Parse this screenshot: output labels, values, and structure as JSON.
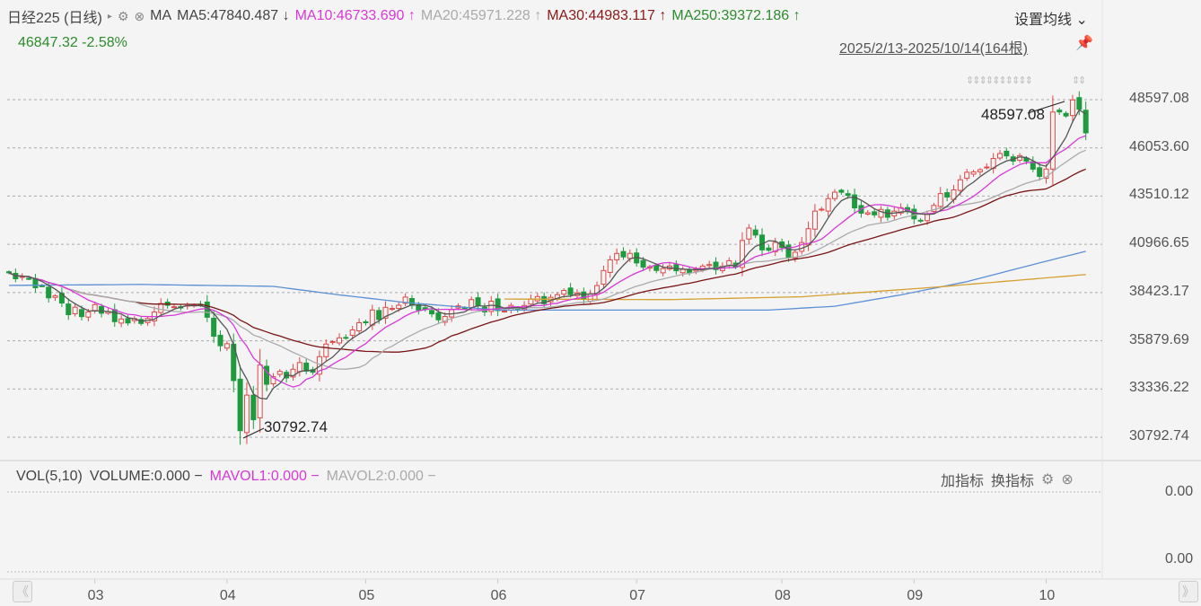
{
  "header": {
    "title": "日经225 (日线)",
    "expand_icon": "triangle-right-icon",
    "ma_label": "MA",
    "ma5": "MA5:47840.487 ↓",
    "ma10": "MA10:46733.690 ↑",
    "ma20": "MA20:45971.228 ↑",
    "ma30": "MA30:44983.117 ↑",
    "ma250": "MA250:39372.186 ↑",
    "set_ma": "设置均线 ⌄",
    "price": "46847.32 -2.58%",
    "range": "2025/2/13-2025/10/14(164根)"
  },
  "colors": {
    "up": "#e04848",
    "down": "#1f9a3f",
    "ma5": "#555555",
    "ma10": "#d838d8",
    "ma20": "#aaaaaa",
    "ma30": "#7a1414",
    "blue_line": "#5b8fd6",
    "gold_line": "#d4a030"
  },
  "chart_data": {
    "type": "candlestick",
    "y_ticks": [
      "48597.08",
      "46053.60",
      "43510.12",
      "40966.65",
      "38423.17",
      "35879.69",
      "33336.22",
      "30792.74"
    ],
    "ylim": [
      30792.74,
      48597.08
    ],
    "high_label": "48597.08",
    "low_label": "30792.74",
    "months": [
      "03",
      "04",
      "05",
      "06",
      "07",
      "08",
      "09",
      "10"
    ],
    "month_start_index": [
      13,
      33,
      54,
      74,
      95,
      117,
      137,
      157
    ],
    "closes": [
      39462,
      39149,
      39270,
      39164,
      38678,
      38777,
      38142,
      38256,
      37870,
      37256,
      37650,
      37155,
      37400,
      37785,
      37331,
      37418,
      36887,
      37028,
      36819,
      37050,
      36790,
      37053,
      37396,
      37845,
      37751,
      37677,
      37608,
      37800,
      37780,
      37799,
      37120,
      36120,
      35617,
      35725,
      33780,
      31136,
      33012,
      31714,
      34609,
      33585,
      33982,
      34267,
      33920,
      34377,
      34730,
      34280,
      34220,
      35040,
      35705,
      35839,
      36032,
      36046,
      36452,
      36831,
      36830,
      37503,
      37000,
      37644,
      37585,
      37755,
      38183,
      37753,
      37498,
      37529,
      37298,
      36985,
      37160,
      37532,
      37724,
      37623,
      38050,
      37722,
      37400,
      37965,
      37471,
      37446,
      37747,
      37554,
      37741,
      38088,
      38211,
      37834,
      38173,
      38312,
      38536,
      38311,
      38403,
      38088,
      38354,
      38790,
      39584,
      40150,
      40487,
      40300,
      40487,
      39986,
      39762,
      39785,
      39587,
      39688,
      39821,
      39569,
      39646,
      39459,
      39678,
      39819,
      39901,
      39630,
      39819,
      40100,
      39774,
      41171,
      41826,
      41456,
      40674,
      40654,
      41070,
      40800,
      40290,
      40549,
      41059,
      41794,
      42718,
      42820,
      43378,
      43718,
      43714,
      43546,
      42888,
      42610,
      42633,
      42520,
      42807,
      42394,
      42718,
      42900,
      42718,
      42310,
      42189,
      42580,
      43018,
      43643,
      43459,
      43838,
      44372,
      44768,
      44790,
      44902,
      45045,
      45493,
      45754,
      45630,
      45354,
      45644,
      45355,
      44932,
      44550,
      44936,
      47944,
      47950,
      47735,
      48580,
      48088,
      46847
    ],
    "blue_line": [
      [
        0,
        38800
      ],
      [
        20,
        38850
      ],
      [
        40,
        38750
      ],
      [
        50,
        38300
      ],
      [
        60,
        37900
      ],
      [
        74,
        37500
      ],
      [
        100,
        37500
      ],
      [
        115,
        37500
      ],
      [
        125,
        37700
      ],
      [
        135,
        38300
      ],
      [
        145,
        39000
      ],
      [
        155,
        39900
      ],
      [
        163,
        40600
      ]
    ],
    "gold_line": [
      [
        75,
        38080
      ],
      [
        100,
        38050
      ],
      [
        120,
        38200
      ],
      [
        140,
        38700
      ],
      [
        163,
        39372
      ]
    ]
  },
  "volume": {
    "label": "VOL(5,10)",
    "volume": "VOLUME:0.000 −",
    "mavol1": "MAVOL1:0.000 −",
    "mavol2": "MAVOL2:0.000 −",
    "add_indicator": "加指标",
    "switch_indicator": "换指标",
    "y_ticks": [
      "0.00",
      "0.00"
    ]
  },
  "nav": {
    "prev": "《",
    "next": "》"
  }
}
